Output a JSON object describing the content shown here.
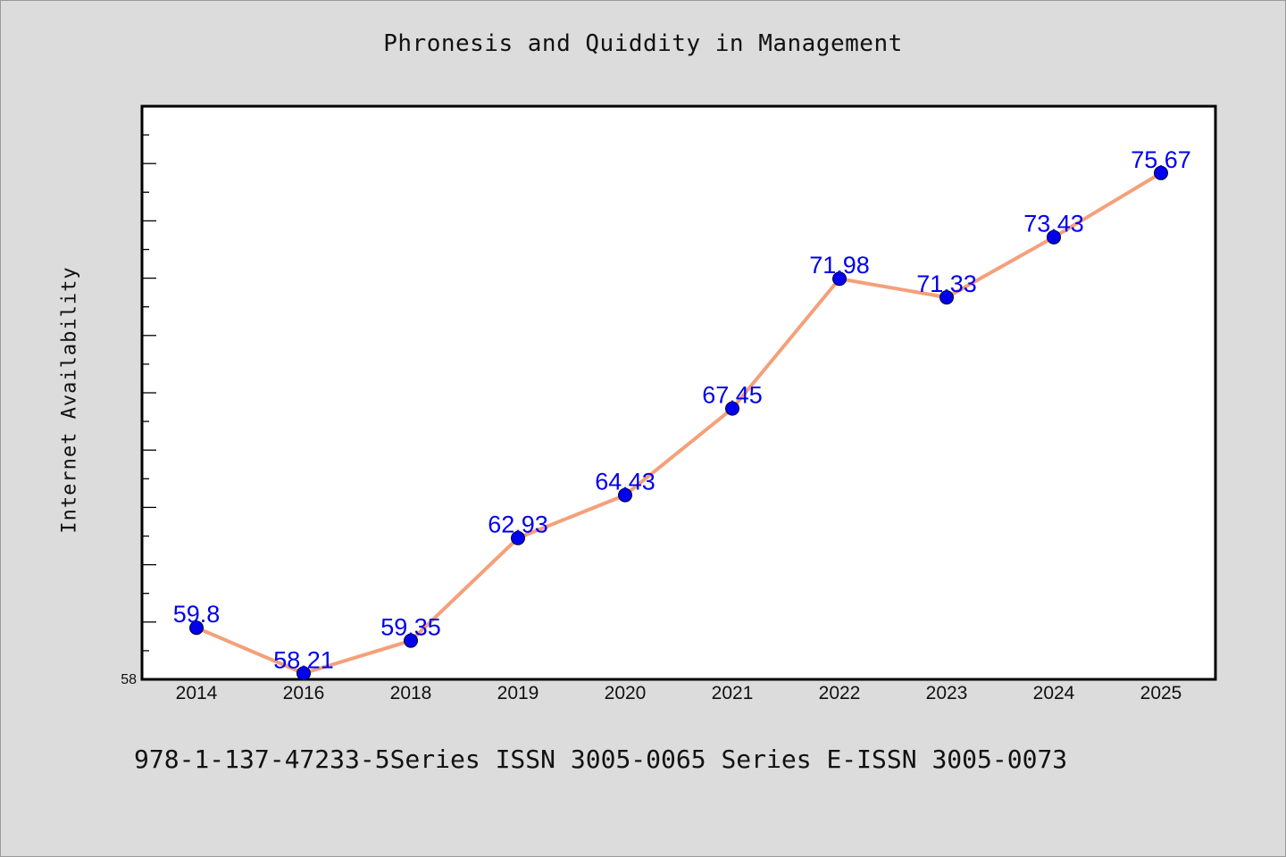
{
  "chart_data": {
    "type": "line",
    "title": "Phronesis and Quiddity in Management",
    "xlabel": "",
    "ylabel": "Internet Availability",
    "categories": [
      "2014",
      "2016",
      "2018",
      "2019",
      "2020",
      "2021",
      "2022",
      "2023",
      "2024",
      "2025"
    ],
    "series": [
      {
        "values": [
          59.8,
          58.21,
          59.35,
          62.93,
          64.43,
          67.45,
          71.98,
          71.33,
          73.43,
          75.67
        ],
        "data_labels": [
          "59.8",
          "58.21",
          "59.35",
          "62.93",
          "64.43",
          "67.45",
          "71.98",
          "71.33",
          "73.43",
          "75.67"
        ]
      }
    ],
    "y_tick_labels": [
      "58"
    ],
    "ylim": [
      58,
      78
    ],
    "grid": false,
    "legend": "none",
    "colors": {
      "line": "#f4a07a",
      "marker": "#0000ee",
      "data_label": "#0000ee",
      "plot_background": "#ffffff",
      "page_background": "#dcdcdc"
    }
  },
  "footer": {
    "text": "978-1-137-47233-5Series ISSN 3005-0065 Series E-ISSN 3005-0073"
  }
}
